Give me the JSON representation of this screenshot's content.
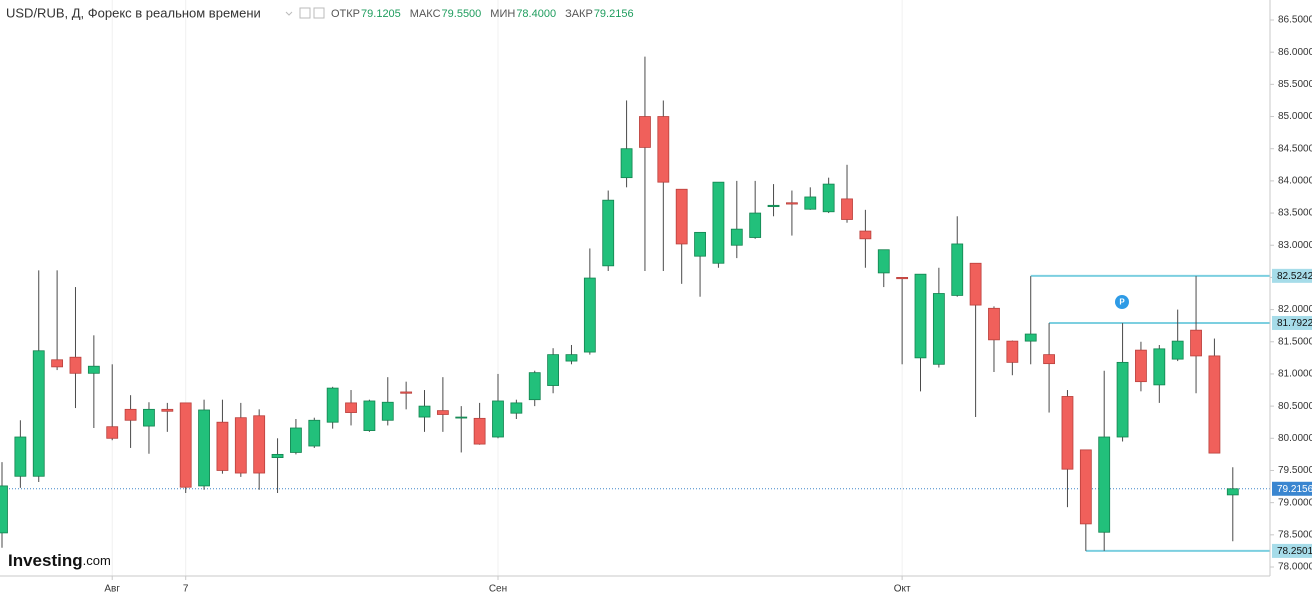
{
  "chart_data": {
    "type": "candlestick",
    "title": "USD/RUB, Д, Форекс в реальном времени",
    "summary": [
      {
        "name": "ОТКР",
        "value": 79.1205
      },
      {
        "name": "МАКС",
        "value": 79.55,
        "value_label": "79.5500"
      },
      {
        "name": "МИН",
        "value": 78.4,
        "value_label": "78.4000"
      },
      {
        "name": "ЗАКР",
        "value": 79.2156
      }
    ],
    "logo": {
      "brand": "Investing",
      "suffix": ".com"
    },
    "up_color": "#22c07b",
    "down_color": "#f0605b",
    "categories": [
      null,
      null,
      null,
      null,
      null,
      null,
      "Авг",
      null,
      null,
      null,
      "7",
      null,
      null,
      null,
      null,
      null,
      null,
      null,
      null,
      null,
      null,
      null,
      null,
      null,
      null,
      null,
      null,
      "Сен",
      null,
      null,
      null,
      null,
      null,
      null,
      null,
      null,
      null,
      null,
      null,
      null,
      null,
      null,
      null,
      null,
      null,
      null,
      null,
      null,
      null,
      "Окт",
      null,
      null,
      null,
      null,
      null,
      null,
      null,
      null,
      null,
      null,
      null,
      null,
      null,
      null,
      null,
      null,
      null,
      null
    ],
    "open": [
      78.53,
      79.41,
      79.41,
      81.22,
      81.26,
      81.01,
      80.18,
      80.45,
      80.19,
      80.45,
      80.55,
      79.26,
      80.25,
      80.32,
      80.35,
      79.7,
      79.78,
      79.88,
      80.25,
      80.55,
      80.12,
      80.28,
      80.72,
      80.33,
      80.43,
      80.33,
      80.31,
      80.02,
      80.39,
      80.6,
      80.82,
      81.2,
      81.34,
      82.68,
      84.05,
      85.0,
      85.0,
      83.87,
      82.83,
      82.72,
      83.0,
      83.12,
      83.6,
      83.66,
      83.56,
      83.52,
      83.72,
      83.22,
      82.57,
      82.5,
      81.25,
      81.15,
      82.22,
      82.72,
      82.02,
      81.51,
      81.51,
      81.3,
      80.65,
      79.82,
      78.54,
      80.02,
      81.37,
      80.83,
      81.23,
      81.68,
      81.28,
      79.1205
    ],
    "high": [
      79.63,
      80.28,
      82.61,
      82.61,
      82.35,
      81.6,
      81.15,
      80.67,
      80.56,
      80.55,
      80.55,
      80.6,
      80.6,
      80.55,
      80.45,
      80.0,
      80.3,
      80.32,
      80.8,
      80.75,
      80.6,
      80.95,
      80.88,
      80.75,
      80.95,
      80.5,
      80.55,
      81.0,
      80.6,
      81.05,
      81.4,
      81.45,
      82.95,
      83.85,
      85.25,
      85.93,
      85.25,
      83.87,
      83.2,
      83.98,
      84.0,
      84.0,
      83.95,
      83.85,
      83.9,
      84.05,
      84.25,
      83.55,
      82.93,
      82.5,
      82.55,
      82.65,
      83.45,
      82.72,
      82.05,
      81.52,
      82.52,
      81.79,
      80.75,
      79.82,
      81.05,
      81.79,
      81.5,
      81.45,
      82.0,
      82.52,
      81.55,
      79.55
    ],
    "low": [
      78.3,
      79.23,
      79.32,
      81.06,
      80.47,
      80.16,
      79.97,
      79.85,
      79.76,
      80.1,
      79.15,
      79.2,
      79.45,
      79.4,
      79.2,
      79.15,
      79.75,
      79.85,
      80.15,
      80.2,
      80.1,
      80.2,
      80.45,
      80.1,
      80.1,
      79.78,
      79.9,
      80.0,
      80.3,
      80.5,
      80.7,
      81.15,
      81.3,
      82.6,
      83.9,
      82.6,
      82.6,
      82.4,
      82.2,
      82.65,
      82.8,
      83.1,
      83.45,
      83.15,
      83.55,
      83.5,
      83.35,
      82.65,
      82.35,
      81.15,
      80.73,
      81.1,
      82.2,
      80.33,
      81.03,
      80.98,
      81.15,
      80.4,
      78.93,
      78.25,
      78.25,
      79.95,
      80.73,
      80.55,
      81.2,
      80.7,
      79.77,
      78.4
    ],
    "close": [
      79.26,
      80.02,
      81.36,
      81.11,
      81.01,
      81.12,
      80.0,
      80.28,
      80.45,
      80.42,
      79.24,
      80.44,
      79.5,
      79.46,
      79.46,
      79.75,
      80.16,
      80.28,
      80.78,
      80.4,
      80.58,
      80.56,
      80.7,
      80.5,
      80.37,
      80.33,
      79.91,
      80.58,
      80.55,
      81.02,
      81.3,
      81.3,
      82.49,
      83.7,
      84.5,
      84.52,
      83.98,
      83.02,
      83.2,
      83.98,
      83.25,
      83.5,
      83.62,
      83.64,
      83.75,
      83.95,
      83.4,
      83.1,
      82.93,
      82.48,
      82.55,
      82.25,
      83.02,
      82.07,
      81.53,
      81.18,
      81.62,
      81.16,
      79.52,
      78.67,
      80.02,
      81.18,
      80.88,
      81.39,
      81.51,
      81.28,
      79.77,
      79.2156
    ],
    "levels": [
      82.5242,
      81.7922,
      78.2501
    ],
    "ylim": [
      78.0,
      86.5
    ],
    "yticks": [
      {
        "value": 78.0,
        "label": "78.0000"
      },
      {
        "value": 78.5,
        "label": "78.5000"
      },
      {
        "value": 79.0,
        "label": "79.0000"
      },
      {
        "value": 79.5,
        "label": "79.5000"
      },
      {
        "value": 80.0,
        "label": "80.0000"
      },
      {
        "value": 80.5,
        "label": "80.5000"
      },
      {
        "value": 81.0,
        "label": "81.0000"
      },
      {
        "value": 81.5,
        "label": "81.5000"
      },
      {
        "value": 82.0,
        "label": "82.0000"
      },
      {
        "value": 82.5,
        "label": "82.5000"
      },
      {
        "value": 83.0,
        "label": "83.0000"
      },
      {
        "value": 83.5,
        "label": "83.5000"
      },
      {
        "value": 84.0,
        "label": "84.0000"
      },
      {
        "value": 84.5,
        "label": "84.5000"
      },
      {
        "value": 85.0,
        "label": "85.0000"
      },
      {
        "value": 85.5,
        "label": "85.5000"
      },
      {
        "value": 86.0,
        "label": "86.0000"
      },
      {
        "value": 86.5,
        "label": "86.5000"
      }
    ]
  }
}
